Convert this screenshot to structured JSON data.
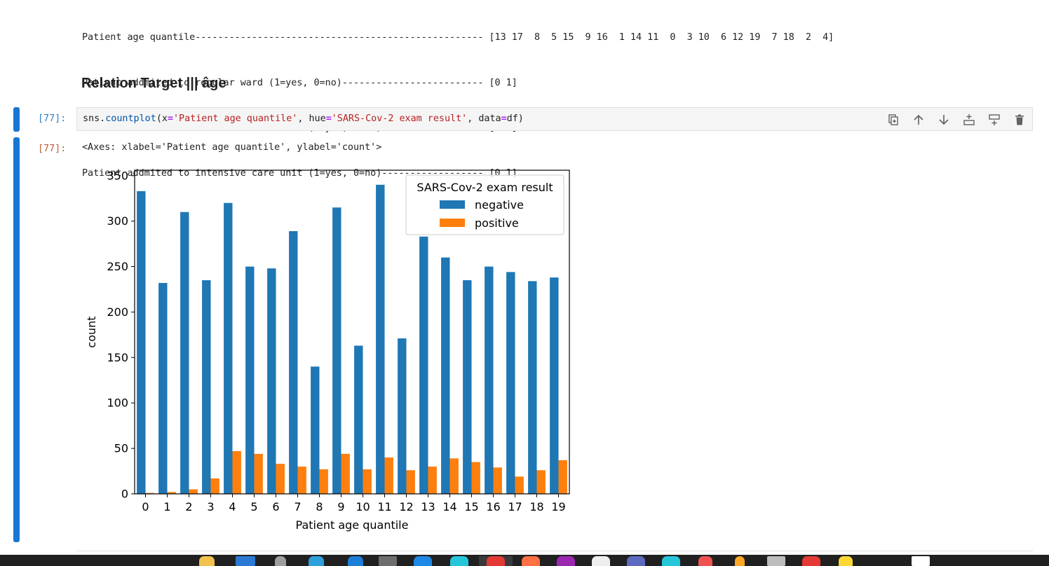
{
  "output_stream": {
    "lines": [
      "Patient age quantile--------------------------------------------------- [13 17  8  5 15  9 16  1 14 11  0  3 10  6 12 19  7 18  2  4]",
      "Patient addmited to regular ward (1=yes, 0=no)------------------------- [0 1]",
      "Patient addmited to semi-intensive unit (1=yes, 0=no)------------------ [0 1]",
      "Patient addmited to intensive care unit (1=yes, 0=no)------------------ [0 1]"
    ]
  },
  "markdown_heading": "Relation Target ||| âge",
  "code_cell": {
    "in_prompt": "[77]:",
    "code": {
      "p1": "sns.",
      "fn": "countplot",
      "p2": "(x",
      "eq1": "=",
      "s1": "'Patient age quantile'",
      "p3": ", hue",
      "eq2": "=",
      "s2": "'SARS-Cov-2 exam result'",
      "p4": ", data",
      "eq3": "=",
      "p5": "df)"
    }
  },
  "toolbar": {
    "icons": [
      "duplicate-icon",
      "move-up-icon",
      "move-down-icon",
      "insert-above-icon",
      "insert-below-icon",
      "delete-icon"
    ]
  },
  "output_cell": {
    "out_prompt": "[77]:",
    "text": "<Axes: xlabel='Patient age quantile', ylabel='count'>"
  },
  "colors": {
    "cell_bar": "#1976d2",
    "negative": "#1f77b4",
    "positive": "#ff7f0e"
  },
  "chart_data": {
    "type": "bar",
    "xlabel": "Patient age quantile",
    "ylabel": "count",
    "categories": [
      "0",
      "1",
      "2",
      "3",
      "4",
      "5",
      "6",
      "7",
      "8",
      "9",
      "10",
      "11",
      "12",
      "13",
      "14",
      "15",
      "16",
      "17",
      "18",
      "19"
    ],
    "yticks": [
      0,
      50,
      100,
      150,
      200,
      250,
      300,
      350
    ],
    "ylim": [
      0,
      356
    ],
    "legend_title": "SARS-Cov-2 exam result",
    "legend_position": "top-right",
    "grid": false,
    "series": [
      {
        "name": "negative",
        "color": "#1f77b4",
        "values": [
          333,
          232,
          310,
          235,
          320,
          250,
          248,
          289,
          140,
          315,
          163,
          340,
          171,
          283,
          260,
          235,
          250,
          244,
          234,
          238
        ]
      },
      {
        "name": "positive",
        "color": "#ff7f0e",
        "values": [
          1,
          2,
          5,
          17,
          47,
          44,
          33,
          30,
          27,
          44,
          27,
          40,
          26,
          30,
          39,
          35,
          29,
          19,
          26,
          37
        ]
      }
    ]
  }
}
